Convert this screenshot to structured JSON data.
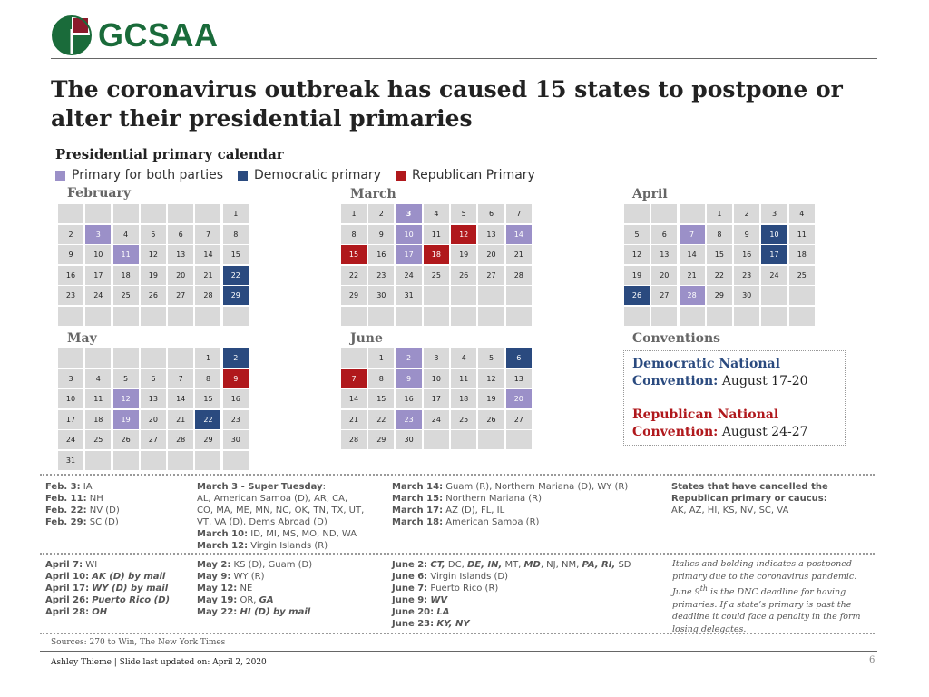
{
  "brand": {
    "name": "GCSAA",
    "logo_label": "GCSAA"
  },
  "title": "The coronavirus outbreak has caused 15 states to postpone or alter their presidential primaries",
  "subtitle": "Presidential primary calendar",
  "legend": [
    {
      "label": "Primary for both parties",
      "color": "#9b90c8"
    },
    {
      "label": "Democratic primary",
      "color": "#2a4a7f"
    },
    {
      "label": "Republican Primary",
      "color": "#b0181c"
    }
  ],
  "colors": {
    "both": "#9b90c8",
    "dem": "#2a4a7f",
    "rep": "#b0181c",
    "empty": "#d9d9d9"
  },
  "months": {
    "february": {
      "name": "February",
      "cells": [
        {
          "d": ""
        },
        {
          "d": ""
        },
        {
          "d": ""
        },
        {
          "d": ""
        },
        {
          "d": ""
        },
        {
          "d": ""
        },
        {
          "d": "1"
        },
        {
          "d": "2"
        },
        {
          "d": "3",
          "t": "both"
        },
        {
          "d": "4"
        },
        {
          "d": "5"
        },
        {
          "d": "6"
        },
        {
          "d": "7"
        },
        {
          "d": "8"
        },
        {
          "d": "9"
        },
        {
          "d": "10"
        },
        {
          "d": "11",
          "t": "both"
        },
        {
          "d": "12"
        },
        {
          "d": "13"
        },
        {
          "d": "14"
        },
        {
          "d": "15"
        },
        {
          "d": "16"
        },
        {
          "d": "17"
        },
        {
          "d": "18"
        },
        {
          "d": "19"
        },
        {
          "d": "20"
        },
        {
          "d": "21"
        },
        {
          "d": "22",
          "t": "dem"
        },
        {
          "d": "23"
        },
        {
          "d": "24"
        },
        {
          "d": "25"
        },
        {
          "d": "26"
        },
        {
          "d": "27"
        },
        {
          "d": "28"
        },
        {
          "d": "29",
          "t": "dem"
        },
        {
          "d": ""
        },
        {
          "d": ""
        },
        {
          "d": ""
        },
        {
          "d": ""
        },
        {
          "d": ""
        },
        {
          "d": ""
        },
        {
          "d": ""
        }
      ]
    },
    "march": {
      "name": "March",
      "cells": [
        {
          "d": "1"
        },
        {
          "d": "2"
        },
        {
          "d": "3",
          "t": "both",
          "b": true
        },
        {
          "d": "4"
        },
        {
          "d": "5"
        },
        {
          "d": "6"
        },
        {
          "d": "7"
        },
        {
          "d": "8"
        },
        {
          "d": "9"
        },
        {
          "d": "10",
          "t": "both"
        },
        {
          "d": "11"
        },
        {
          "d": "12",
          "t": "rep"
        },
        {
          "d": "13"
        },
        {
          "d": "14",
          "t": "both"
        },
        {
          "d": "15",
          "t": "rep"
        },
        {
          "d": "16"
        },
        {
          "d": "17",
          "t": "both"
        },
        {
          "d": "18",
          "t": "rep"
        },
        {
          "d": "19"
        },
        {
          "d": "20"
        },
        {
          "d": "21"
        },
        {
          "d": "22"
        },
        {
          "d": "23"
        },
        {
          "d": "24"
        },
        {
          "d": "25"
        },
        {
          "d": "26"
        },
        {
          "d": "27"
        },
        {
          "d": "28"
        },
        {
          "d": "29"
        },
        {
          "d": "30"
        },
        {
          "d": "31"
        },
        {
          "d": ""
        },
        {
          "d": ""
        },
        {
          "d": ""
        },
        {
          "d": ""
        },
        {
          "d": ""
        },
        {
          "d": ""
        },
        {
          "d": ""
        },
        {
          "d": ""
        },
        {
          "d": ""
        },
        {
          "d": ""
        },
        {
          "d": ""
        }
      ]
    },
    "april": {
      "name": "April",
      "cells": [
        {
          "d": ""
        },
        {
          "d": ""
        },
        {
          "d": ""
        },
        {
          "d": "1"
        },
        {
          "d": "2"
        },
        {
          "d": "3"
        },
        {
          "d": "4"
        },
        {
          "d": "5"
        },
        {
          "d": "6"
        },
        {
          "d": "7",
          "t": "both"
        },
        {
          "d": "8"
        },
        {
          "d": "9"
        },
        {
          "d": "10",
          "t": "dem"
        },
        {
          "d": "11"
        },
        {
          "d": "12"
        },
        {
          "d": "13"
        },
        {
          "d": "14"
        },
        {
          "d": "15"
        },
        {
          "d": "16"
        },
        {
          "d": "17",
          "t": "dem"
        },
        {
          "d": "18"
        },
        {
          "d": "19"
        },
        {
          "d": "20"
        },
        {
          "d": "21"
        },
        {
          "d": "22"
        },
        {
          "d": "23"
        },
        {
          "d": "24"
        },
        {
          "d": "25"
        },
        {
          "d": "26",
          "t": "dem"
        },
        {
          "d": "27"
        },
        {
          "d": "28",
          "t": "both"
        },
        {
          "d": "29"
        },
        {
          "d": "30"
        },
        {
          "d": ""
        },
        {
          "d": ""
        },
        {
          "d": ""
        },
        {
          "d": ""
        },
        {
          "d": ""
        },
        {
          "d": ""
        },
        {
          "d": ""
        },
        {
          "d": ""
        },
        {
          "d": ""
        }
      ]
    },
    "may": {
      "name": "May",
      "cells": [
        {
          "d": ""
        },
        {
          "d": ""
        },
        {
          "d": ""
        },
        {
          "d": ""
        },
        {
          "d": ""
        },
        {
          "d": "1"
        },
        {
          "d": "2",
          "t": "dem"
        },
        {
          "d": "3"
        },
        {
          "d": "4"
        },
        {
          "d": "5"
        },
        {
          "d": "6"
        },
        {
          "d": "7"
        },
        {
          "d": "8"
        },
        {
          "d": "9",
          "t": "rep"
        },
        {
          "d": "10"
        },
        {
          "d": "11"
        },
        {
          "d": "12",
          "t": "both"
        },
        {
          "d": "13"
        },
        {
          "d": "14"
        },
        {
          "d": "15"
        },
        {
          "d": "16"
        },
        {
          "d": "17"
        },
        {
          "d": "18"
        },
        {
          "d": "19",
          "t": "both"
        },
        {
          "d": "20"
        },
        {
          "d": "21"
        },
        {
          "d": "22",
          "t": "dem"
        },
        {
          "d": "23"
        },
        {
          "d": "24"
        },
        {
          "d": "25"
        },
        {
          "d": "26"
        },
        {
          "d": "27"
        },
        {
          "d": "28"
        },
        {
          "d": "29"
        },
        {
          "d": "30"
        },
        {
          "d": "31"
        },
        {
          "d": ""
        },
        {
          "d": ""
        },
        {
          "d": ""
        },
        {
          "d": ""
        },
        {
          "d": ""
        },
        {
          "d": ""
        }
      ]
    },
    "june": {
      "name": "June",
      "cells": [
        {
          "d": ""
        },
        {
          "d": "1"
        },
        {
          "d": "2",
          "t": "both"
        },
        {
          "d": "3"
        },
        {
          "d": "4"
        },
        {
          "d": "5"
        },
        {
          "d": "6",
          "t": "dem"
        },
        {
          "d": "7",
          "t": "rep"
        },
        {
          "d": "8"
        },
        {
          "d": "9",
          "t": "both"
        },
        {
          "d": "10"
        },
        {
          "d": "11"
        },
        {
          "d": "12"
        },
        {
          "d": "13"
        },
        {
          "d": "14"
        },
        {
          "d": "15"
        },
        {
          "d": "16"
        },
        {
          "d": "17"
        },
        {
          "d": "18"
        },
        {
          "d": "19"
        },
        {
          "d": "20",
          "t": "both"
        },
        {
          "d": "21"
        },
        {
          "d": "22"
        },
        {
          "d": "23",
          "t": "both"
        },
        {
          "d": "24"
        },
        {
          "d": "25"
        },
        {
          "d": "26"
        },
        {
          "d": "27"
        },
        {
          "d": "28"
        },
        {
          "d": "29"
        },
        {
          "d": "30"
        },
        {
          "d": ""
        },
        {
          "d": ""
        },
        {
          "d": ""
        },
        {
          "d": ""
        }
      ]
    }
  },
  "conventions": {
    "title": "Conventions",
    "dem_label": "Democratic National Convention:",
    "dem_date": "August 17-20",
    "rep_label": "Republican National Convention:",
    "rep_date": "August 24-27"
  },
  "notes_top": {
    "col1": [
      {
        "label": "Feb. 3:",
        "text": " IA"
      },
      {
        "label": "Feb. 11:",
        "text": " NH"
      },
      {
        "label": "Feb. 22:",
        "text": " NV (D)"
      },
      {
        "label": "Feb. 29:",
        "text": "  SC (D)"
      }
    ],
    "col2": [
      {
        "label": "March 3 - Super Tuesday",
        "text": ":"
      },
      {
        "label": "",
        "text": "AL, American Samoa (D), AR, CA,"
      },
      {
        "label": "",
        "text": "CO, MA, ME, MN, NC, OK, TN, TX, UT,"
      },
      {
        "label": "",
        "text": "VT, VA (D), Dems Abroad (D)"
      },
      {
        "label": "March 10:",
        "text": " ID, MI, MS, MO, ND, WA"
      },
      {
        "label": "March 12:",
        "text": " Virgin Islands (R)"
      }
    ],
    "col3": [
      {
        "label": "March 14:",
        "text": " Guam (R), Northern Mariana (D), WY (R)"
      },
      {
        "label": "March 15:",
        "text": " Northern Mariana (R)"
      },
      {
        "label": "March 17:",
        "text": " AZ (D), FL, IL"
      },
      {
        "label": "March 18:",
        "text": " American Samoa (R)"
      }
    ],
    "col4": [
      {
        "label": "States that have cancelled the",
        "text": ""
      },
      {
        "label": "Republican primary or caucus:",
        "text": ""
      },
      {
        "label": "",
        "text": "AK, AZ, HI, KS, NV, SC, VA"
      }
    ]
  },
  "notes_bottom": {
    "col1": [
      {
        "label": "April 7:",
        "text": " WI"
      },
      {
        "label": "April 10:",
        "text": " ",
        "em": "AK (D) by mail"
      },
      {
        "label": "April 17:",
        "text": " ",
        "em": "WY (D) by mail"
      },
      {
        "label": "April 26:",
        "text": " ",
        "em": "Puerto Rico (D)"
      },
      {
        "label": "April 28:",
        "text": " ",
        "em": "OH"
      }
    ],
    "col2": [
      {
        "label": "May 2:",
        "text": " KS (D), Guam (D)"
      },
      {
        "label": "May 9:",
        "text": " WY (R)"
      },
      {
        "label": "May 12:",
        "text": " NE"
      },
      {
        "label": "May 19:",
        "text": " OR, ",
        "em": "GA"
      },
      {
        "label": "May 22:",
        "text": " ",
        "em": "HI (D) by mail"
      }
    ],
    "col3_line1": {
      "label": "June 2:",
      "t1": " ",
      "e1": "CT,",
      "t2": " DC, ",
      "e2": "DE, IN,",
      "t3": " MT, ",
      "e3": "MD",
      "t4": ", NJ, NM, ",
      "e4": "PA, RI,",
      "t5": " SD"
    },
    "col3": [
      {
        "label": "June 6:",
        "text": " Virgin Islands (D)"
      },
      {
        "label": "June 7:",
        "text": " Puerto Rico (R)"
      },
      {
        "label": "June 9:",
        "text": " ",
        "em": "WV"
      },
      {
        "label": "June 20:",
        "text": " ",
        "em": "LA"
      },
      {
        "label": "June 23:",
        "text": " ",
        "em": "KY, NY"
      }
    ]
  },
  "italic_note": {
    "p1": "Italics and bolding indicates a postponed primary due to the coronavirus pandemic. June 9",
    "sup": "th",
    "p2": " is the DNC deadline for having primaries. If a state’s primary is past the deadline it could face a penalty in the form losing delegates."
  },
  "sources": "Sources: 270 to Win, The New York Times",
  "footer": "Ashley Thieme | Slide last updated on: April 2, 2020",
  "page_number": "6"
}
